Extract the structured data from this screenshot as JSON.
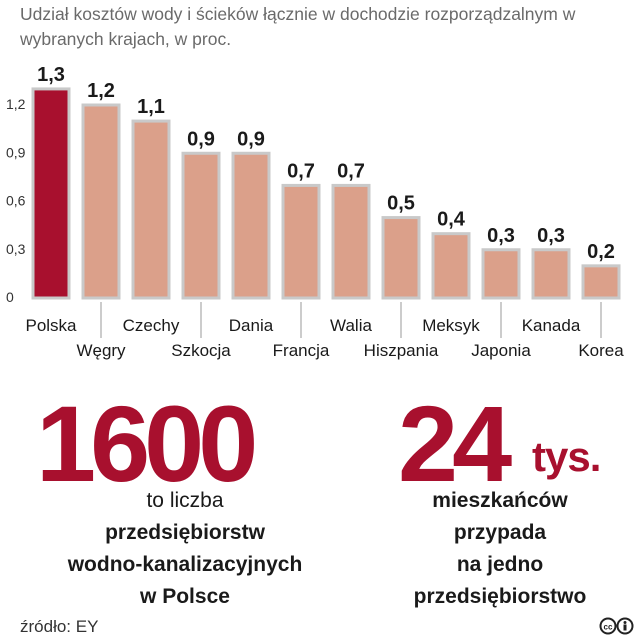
{
  "title": "Udział kosztów wody i ścieków łącznie w dochodzie rozporządzalnym w wybranych krajach, w proc.",
  "chart_data": {
    "type": "bar",
    "categories": [
      "Polska",
      "Węgry",
      "Czechy",
      "Szkocja",
      "Dania",
      "Francja",
      "Walia",
      "Hiszpania",
      "Meksyk",
      "Japonia",
      "Kanada",
      "Korea"
    ],
    "values": [
      1.3,
      1.2,
      1.1,
      0.9,
      0.9,
      0.7,
      0.7,
      0.5,
      0.4,
      0.3,
      0.3,
      0.2
    ],
    "value_labels": [
      "1,3",
      "1,2",
      "1,1",
      "0,9",
      "0,9",
      "0,7",
      "0,7",
      "0,5",
      "0,4",
      "0,3",
      "0,3",
      "0,2"
    ],
    "yticks": [
      0,
      0.3,
      0.6,
      0.9,
      1.2
    ],
    "ytick_labels": [
      "0",
      "0,3",
      "0,6",
      "0,9",
      "1,2"
    ],
    "ylim": [
      0,
      1.3
    ],
    "grid": false,
    "colors": {
      "highlight": "#a8102e",
      "bar": "#dba08a",
      "bar_outline": "#c9c9c9"
    }
  },
  "stats": [
    {
      "number": "1600",
      "unit": "",
      "lines": [
        "to liczba",
        "przedsiębiorstw",
        "wodno-kanalizacyjnych",
        "w Polsce"
      ]
    },
    {
      "number": "24",
      "unit": "tys.",
      "lines": [
        "mieszkańców",
        "przypada",
        "na jedno",
        "przedsiębiorstwo"
      ]
    }
  ],
  "source": "źródło: EY",
  "license_icon": "cc-by-icon"
}
